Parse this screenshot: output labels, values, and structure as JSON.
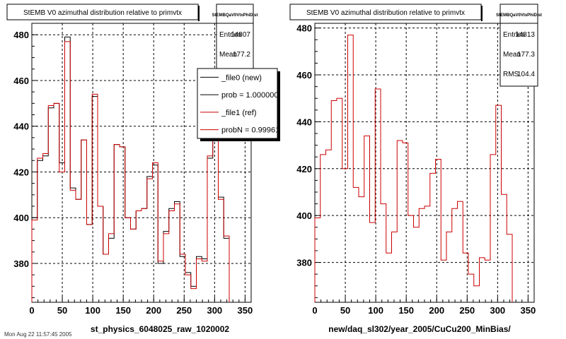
{
  "chart_data": [
    {
      "type": "histogram",
      "title": "StEMB V0 azimuthal distribution relative to primvtx",
      "xlabel": "st_physics_6048025_raw_1020002",
      "xlim": [
        0,
        360
      ],
      "ylim": [
        363,
        485
      ],
      "x_ticks": [
        0,
        50,
        100,
        150,
        200,
        250,
        300,
        350
      ],
      "y_ticks": [
        380,
        400,
        420,
        440,
        460,
        480
      ],
      "grid": true,
      "bin_width": 9,
      "stats": {
        "name": "StEMBQaV0VtxPhiDist",
        "rows": [
          {
            "label": "Entries",
            "value": "14807"
          },
          {
            "label": "Mean",
            "value": "177.2"
          }
        ]
      },
      "legend": {
        "placement": "top-right",
        "entries": [
          {
            "label": "_file0 (new)",
            "color": "#000000"
          },
          {
            "label": "prob = 1.000000",
            "color": "#000000"
          },
          {
            "label": "_file1 (ref)",
            "color": "#cc0000"
          },
          {
            "label": "probN = 0.99961",
            "color": "#cc0000"
          }
        ]
      },
      "series": [
        {
          "name": "_file0 (new)",
          "color": "#000000",
          "values": [
            400,
            425,
            427,
            448,
            450,
            424,
            479,
            413,
            408,
            434,
            397,
            453,
            405,
            384,
            391,
            432,
            431,
            400,
            395,
            403,
            404,
            418,
            423,
            380,
            394,
            404,
            407,
            383,
            376,
            370,
            383,
            382,
            426,
            448,
            409,
            391
          ]
        },
        {
          "name": "_file1 (ref)",
          "color": "#cc0000",
          "values": [
            399,
            426,
            428,
            449,
            450,
            420,
            477,
            412,
            408,
            434,
            397,
            454,
            405,
            384,
            393,
            432,
            431,
            400,
            395,
            403,
            404,
            417,
            424,
            381,
            393,
            403,
            406,
            384,
            375,
            369,
            382,
            381,
            427,
            447,
            408,
            392
          ]
        }
      ]
    },
    {
      "type": "histogram",
      "title": "StEMB V0 azimuthal distribution relative to primvtx",
      "xlabel": "new/daq_sl302/year_2005/CuCu200_MinBias/",
      "xlim": [
        0,
        360
      ],
      "ylim": [
        363,
        482
      ],
      "x_ticks": [
        0,
        50,
        100,
        150,
        200,
        250,
        300,
        350
      ],
      "y_ticks": [
        380,
        400,
        420,
        440,
        460,
        480
      ],
      "grid": true,
      "bin_width": 9,
      "stats": {
        "name": "StEMBQaV0VtxPhiDist",
        "rows": [
          {
            "label": "Entries",
            "value": "14813"
          },
          {
            "label": "Mean",
            "value": "177.3"
          },
          {
            "label": "RMS",
            "value": "104.4"
          }
        ]
      },
      "series": [
        {
          "name": "_file1 (ref)",
          "color": "#cc0000",
          "values": [
            399,
            426,
            428,
            449,
            450,
            420,
            477,
            412,
            408,
            434,
            397,
            454,
            405,
            384,
            393,
            432,
            431,
            400,
            395,
            403,
            404,
            418,
            424,
            381,
            393,
            403,
            406,
            384,
            375,
            370,
            382,
            381,
            426,
            447,
            409,
            392
          ]
        }
      ]
    }
  ],
  "footer": "Mon Aug 22 11:57:45 2005"
}
